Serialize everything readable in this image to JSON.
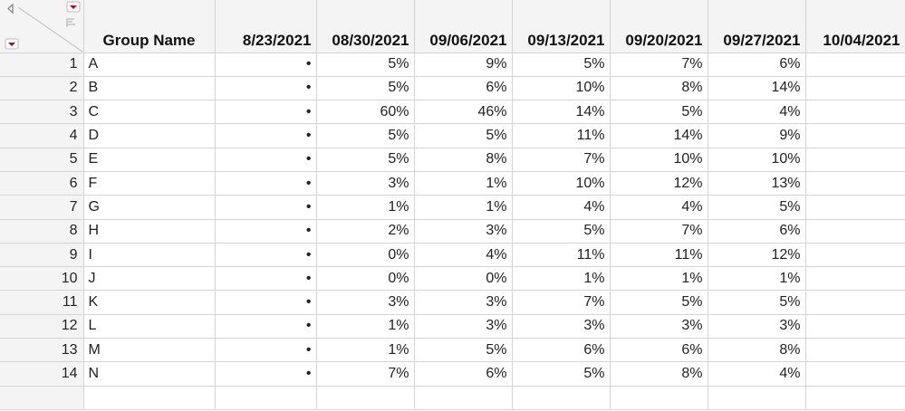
{
  "table": {
    "columns": [
      "Group Name",
      "8/23/2021",
      "08/30/2021",
      "09/06/2021",
      "09/13/2021",
      "09/20/2021",
      "09/27/2021",
      "10/04/2021"
    ],
    "rows": [
      {
        "n": "1",
        "group": "A",
        "values": [
          "•",
          "5%",
          "9%",
          "5%",
          "7%",
          "6%",
          ""
        ]
      },
      {
        "n": "2",
        "group": "B",
        "values": [
          "•",
          "5%",
          "6%",
          "10%",
          "8%",
          "14%",
          ""
        ]
      },
      {
        "n": "3",
        "group": "C",
        "values": [
          "•",
          "60%",
          "46%",
          "14%",
          "5%",
          "4%",
          ""
        ]
      },
      {
        "n": "4",
        "group": "D",
        "values": [
          "•",
          "5%",
          "5%",
          "11%",
          "14%",
          "9%",
          ""
        ]
      },
      {
        "n": "5",
        "group": "E",
        "values": [
          "•",
          "5%",
          "8%",
          "7%",
          "10%",
          "10%",
          ""
        ]
      },
      {
        "n": "6",
        "group": "F",
        "values": [
          "•",
          "3%",
          "1%",
          "10%",
          "12%",
          "13%",
          ""
        ]
      },
      {
        "n": "7",
        "group": "G",
        "values": [
          "•",
          "1%",
          "1%",
          "4%",
          "4%",
          "5%",
          ""
        ]
      },
      {
        "n": "8",
        "group": "H",
        "values": [
          "•",
          "2%",
          "3%",
          "5%",
          "7%",
          "6%",
          ""
        ]
      },
      {
        "n": "9",
        "group": "I",
        "values": [
          "•",
          "0%",
          "4%",
          "11%",
          "11%",
          "12%",
          ""
        ]
      },
      {
        "n": "10",
        "group": "J",
        "values": [
          "•",
          "0%",
          "0%",
          "1%",
          "1%",
          "1%",
          ""
        ]
      },
      {
        "n": "11",
        "group": "K",
        "values": [
          "•",
          "3%",
          "3%",
          "7%",
          "5%",
          "5%",
          ""
        ]
      },
      {
        "n": "12",
        "group": "L",
        "values": [
          "•",
          "1%",
          "3%",
          "3%",
          "3%",
          "3%",
          ""
        ]
      },
      {
        "n": "13",
        "group": "M",
        "values": [
          "•",
          "1%",
          "5%",
          "6%",
          "6%",
          "8%",
          ""
        ]
      },
      {
        "n": "14",
        "group": "N",
        "values": [
          "•",
          "7%",
          "6%",
          "5%",
          "8%",
          "4%",
          ""
        ]
      }
    ]
  },
  "colors": {
    "menu_red": "#c0001a",
    "header_bg": "#f4f4f4",
    "grid": "#d4d4d4"
  }
}
